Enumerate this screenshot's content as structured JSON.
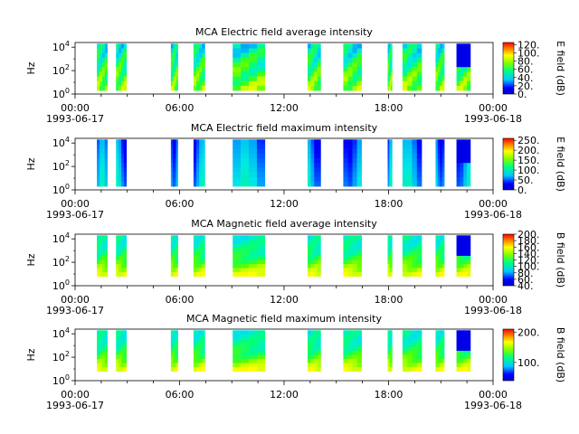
{
  "chart_data": [
    {
      "type": "heatmap",
      "title": "MCA  Electric field average intensity",
      "ylabel": "Hz",
      "ylim": [
        "10^0",
        "10^4"
      ],
      "y_ticks": [
        {
          "base": "10",
          "exp": "0"
        },
        {
          "base": "10",
          "exp": "2"
        },
        {
          "base": "10",
          "exp": "4"
        }
      ],
      "x_ticks": [
        "00:00",
        "06:00",
        "12:00",
        "18:00",
        "00:00"
      ],
      "x_dates": [
        "1993-06-17",
        "1993-06-18"
      ],
      "colorbar": {
        "label": "E field (dB)",
        "range": [
          0,
          125
        ],
        "ticks": [
          "0.",
          "20.",
          "40.",
          "60.",
          "80.",
          "100.",
          "120."
        ]
      },
      "palette": "rainbow",
      "data_hours": [
        [
          1.25,
          1.85
        ],
        [
          2.35,
          2.95
        ],
        [
          5.5,
          5.9
        ],
        [
          6.8,
          7.45
        ],
        [
          9.05,
          10.9
        ],
        [
          13.35,
          14.1
        ],
        [
          15.4,
          16.45
        ],
        [
          17.95,
          18.2
        ],
        [
          18.8,
          19.9
        ],
        [
          20.7,
          21.2
        ],
        [
          21.9,
          22.7
        ]
      ],
      "y_extent_log10": [
        0.3,
        4.3
      ]
    },
    {
      "type": "heatmap",
      "title": "MCA  Electric field maximum intensity",
      "ylabel": "Hz",
      "ylim": [
        "10^0",
        "10^4"
      ],
      "y_ticks": [
        {
          "base": "10",
          "exp": "0"
        },
        {
          "base": "10",
          "exp": "2"
        },
        {
          "base": "10",
          "exp": "4"
        }
      ],
      "x_ticks": [
        "00:00",
        "06:00",
        "12:00",
        "18:00",
        "00:00"
      ],
      "x_dates": [
        "1993-06-17",
        "1993-06-18"
      ],
      "colorbar": {
        "label": "E field (dB)",
        "range": [
          0,
          260
        ],
        "ticks": [
          "0.",
          "50.",
          "100.",
          "150.",
          "200.",
          "250."
        ]
      },
      "palette": "rainbow",
      "data_hours": [
        [
          1.25,
          1.85
        ],
        [
          2.35,
          2.95
        ],
        [
          5.5,
          5.9
        ],
        [
          6.8,
          7.45
        ],
        [
          9.05,
          10.9
        ],
        [
          13.35,
          14.1
        ],
        [
          15.4,
          16.45
        ],
        [
          17.95,
          18.2
        ],
        [
          18.8,
          19.9
        ],
        [
          20.7,
          21.2
        ],
        [
          21.9,
          22.7
        ]
      ],
      "y_extent_log10": [
        0.3,
        4.3
      ]
    },
    {
      "type": "heatmap",
      "title": "MCA  Magnetic field average intensity",
      "ylabel": "Hz",
      "ylim": [
        "10^0",
        "10^4"
      ],
      "y_ticks": [
        {
          "base": "10",
          "exp": "0"
        },
        {
          "base": "10",
          "exp": "2"
        },
        {
          "base": "10",
          "exp": "4"
        }
      ],
      "x_ticks": [
        "00:00",
        "06:00",
        "12:00",
        "18:00",
        "00:00"
      ],
      "x_dates": [
        "1993-06-17",
        "1993-06-18"
      ],
      "colorbar": {
        "label": "B field (dB)",
        "range": [
          40,
          200
        ],
        "ticks": [
          "40.",
          "60.",
          "80.",
          "100.",
          "120.",
          "140.",
          "160.",
          "180.",
          "200."
        ]
      },
      "palette": "rainbow",
      "data_hours": [
        [
          1.25,
          1.85
        ],
        [
          2.35,
          2.95
        ],
        [
          5.5,
          5.9
        ],
        [
          6.8,
          7.45
        ],
        [
          9.05,
          10.9
        ],
        [
          13.35,
          14.1
        ],
        [
          15.4,
          16.45
        ],
        [
          17.95,
          18.2
        ],
        [
          18.8,
          19.9
        ],
        [
          20.7,
          21.2
        ],
        [
          21.9,
          22.7
        ]
      ],
      "y_extent_log10": [
        0.8,
        4.3
      ]
    },
    {
      "type": "heatmap",
      "title": "MCA  Magnetic field maximum intensity",
      "ylabel": "Hz",
      "ylim": [
        "10^0",
        "10^4"
      ],
      "y_ticks": [
        {
          "base": "10",
          "exp": "0"
        },
        {
          "base": "10",
          "exp": "2"
        },
        {
          "base": "10",
          "exp": "4"
        }
      ],
      "x_ticks": [
        "00:00",
        "06:00",
        "12:00",
        "18:00",
        "00:00"
      ],
      "x_dates": [
        "1993-06-17",
        "1993-06-18"
      ],
      "colorbar": {
        "label": "B field (dB)",
        "range": [
          40,
          210
        ],
        "ticks": [
          "100.",
          "200."
        ]
      },
      "palette": "rainbow",
      "data_hours": [
        [
          1.25,
          1.85
        ],
        [
          2.35,
          2.95
        ],
        [
          5.5,
          5.9
        ],
        [
          6.8,
          7.45
        ],
        [
          9.05,
          10.9
        ],
        [
          13.35,
          14.1
        ],
        [
          15.4,
          16.45
        ],
        [
          17.95,
          18.2
        ],
        [
          18.8,
          19.9
        ],
        [
          20.7,
          21.2
        ],
        [
          21.9,
          22.7
        ]
      ],
      "y_extent_log10": [
        0.8,
        4.3
      ]
    }
  ]
}
